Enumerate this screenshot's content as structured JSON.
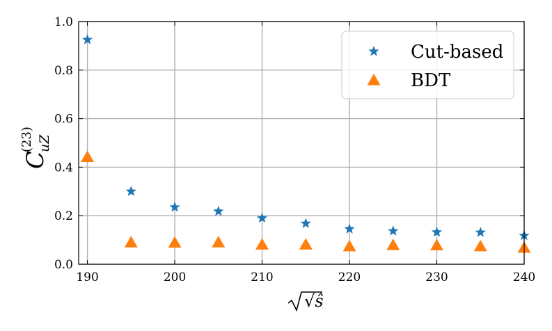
{
  "chart_data": {
    "type": "scatter",
    "title": "",
    "xlabel": "√ŝ",
    "ylabel_main": "C",
    "ylabel_sub": "uZ",
    "ylabel_sup": "(23)",
    "xlim": [
      189,
      240
    ],
    "ylim": [
      0.0,
      1.0
    ],
    "xticks": [
      190,
      200,
      210,
      220,
      230,
      240
    ],
    "yticks": [
      0.0,
      0.2,
      0.4,
      0.6,
      0.8,
      1.0
    ],
    "xtick_labels": [
      "190",
      "200",
      "210",
      "220",
      "230",
      "240"
    ],
    "ytick_labels": [
      "0.0",
      "0.2",
      "0.4",
      "0.6",
      "0.8",
      "1.0"
    ],
    "grid": true,
    "legend_position": "top-right",
    "series": [
      {
        "name": "Cut-based",
        "marker": "star",
        "color": "#1f77b4",
        "x": [
          190,
          195,
          200,
          205,
          210,
          215,
          220,
          225,
          230,
          235,
          240
        ],
        "y": [
          0.925,
          0.3,
          0.235,
          0.218,
          0.19,
          0.168,
          0.145,
          0.137,
          0.132,
          0.131,
          0.118
        ]
      },
      {
        "name": "BDT",
        "marker": "triangle",
        "color": "#ff7f0e",
        "x": [
          190,
          195,
          200,
          205,
          210,
          215,
          220,
          225,
          230,
          235,
          240
        ],
        "y": [
          0.44,
          0.088,
          0.087,
          0.088,
          0.079,
          0.079,
          0.072,
          0.077,
          0.076,
          0.072,
          0.066
        ]
      }
    ]
  }
}
